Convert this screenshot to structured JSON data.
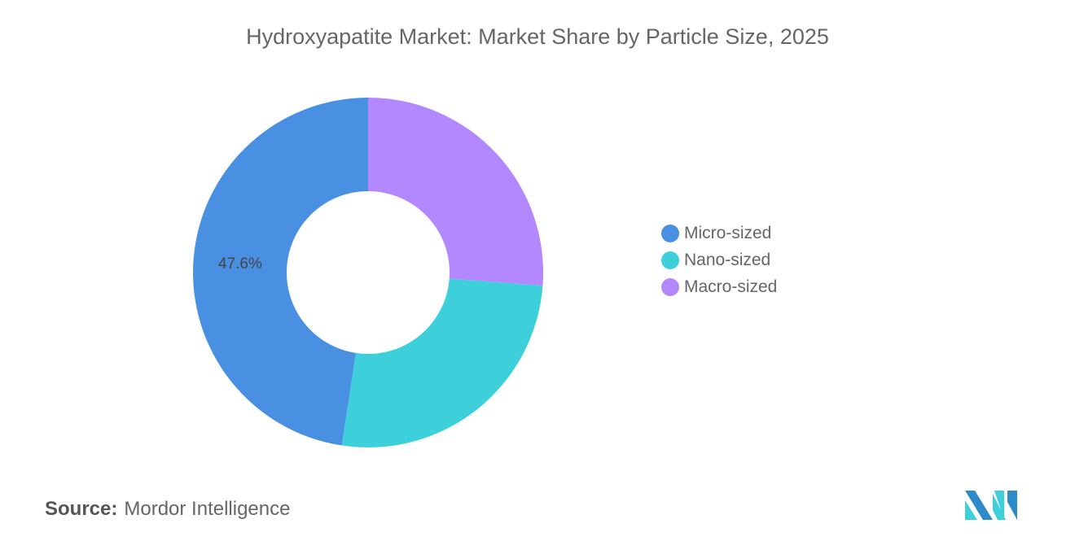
{
  "chart_data": {
    "type": "pie",
    "donut": true,
    "title": "Hydroxyapatite Market: Market Share by Particle Size, 2025",
    "slices": [
      {
        "name": "Macro-sized",
        "value": 26.2,
        "color": "#B388FF"
      },
      {
        "name": "Nano-sized",
        "value": 26.2,
        "color": "#3ED0DA"
      },
      {
        "name": "Micro-sized",
        "value": 47.6,
        "color": "#4A90E2",
        "label": "47.6%"
      }
    ],
    "legend": {
      "placement": "right",
      "items": [
        {
          "name": "Micro-sized",
          "color": "#4A90E2"
        },
        {
          "name": "Nano-sized",
          "color": "#3ED0DA"
        },
        {
          "name": "Macro-sized",
          "color": "#B388FF"
        }
      ]
    }
  },
  "source": {
    "label": "Source:",
    "value": "Mordor Intelligence"
  }
}
